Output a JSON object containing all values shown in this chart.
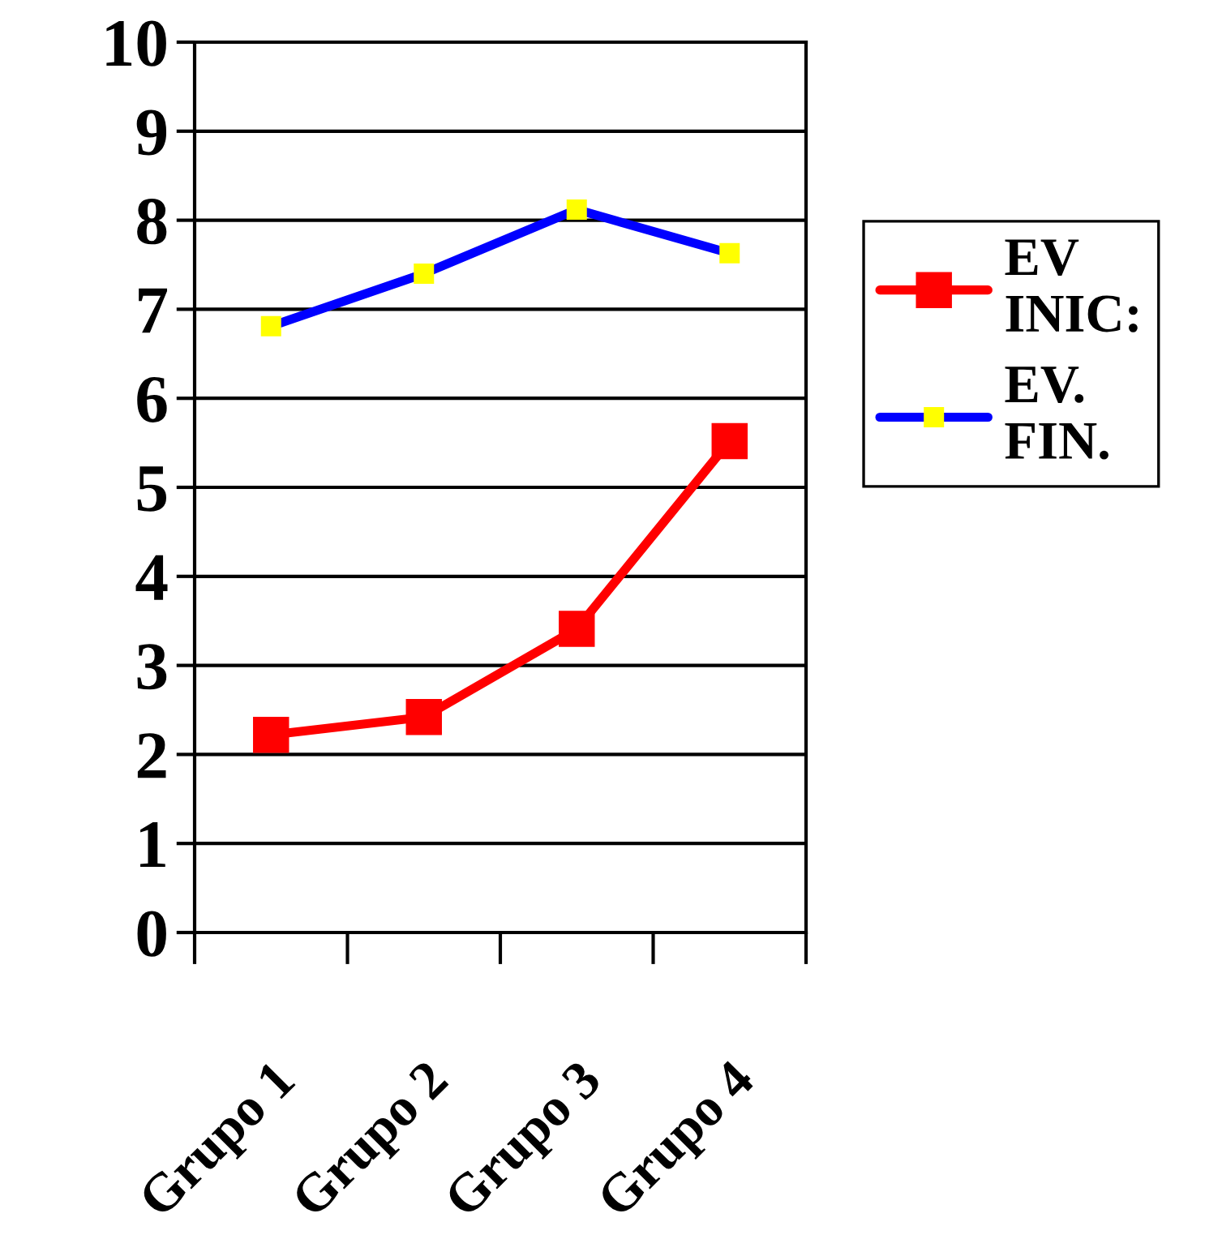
{
  "chart_data": {
    "type": "line",
    "categories": [
      "Grupo 1",
      "Grupo 2",
      "Grupo 3",
      "Grupo 4"
    ],
    "series": [
      {
        "name": "EV INIC:",
        "color": "#ff0000",
        "values": [
          2.22,
          2.42,
          3.41,
          5.52
        ]
      },
      {
        "name": "EV. FIN.",
        "color": "#0000ff",
        "values": [
          6.81,
          7.4,
          8.12,
          7.63
        ]
      }
    ],
    "ylim": [
      0,
      10
    ],
    "yticks": [
      0,
      1,
      2,
      3,
      4,
      5,
      6,
      7,
      8,
      9,
      10
    ],
    "grid": "y",
    "legend": "right",
    "marker": "square",
    "line_style": "solid"
  }
}
